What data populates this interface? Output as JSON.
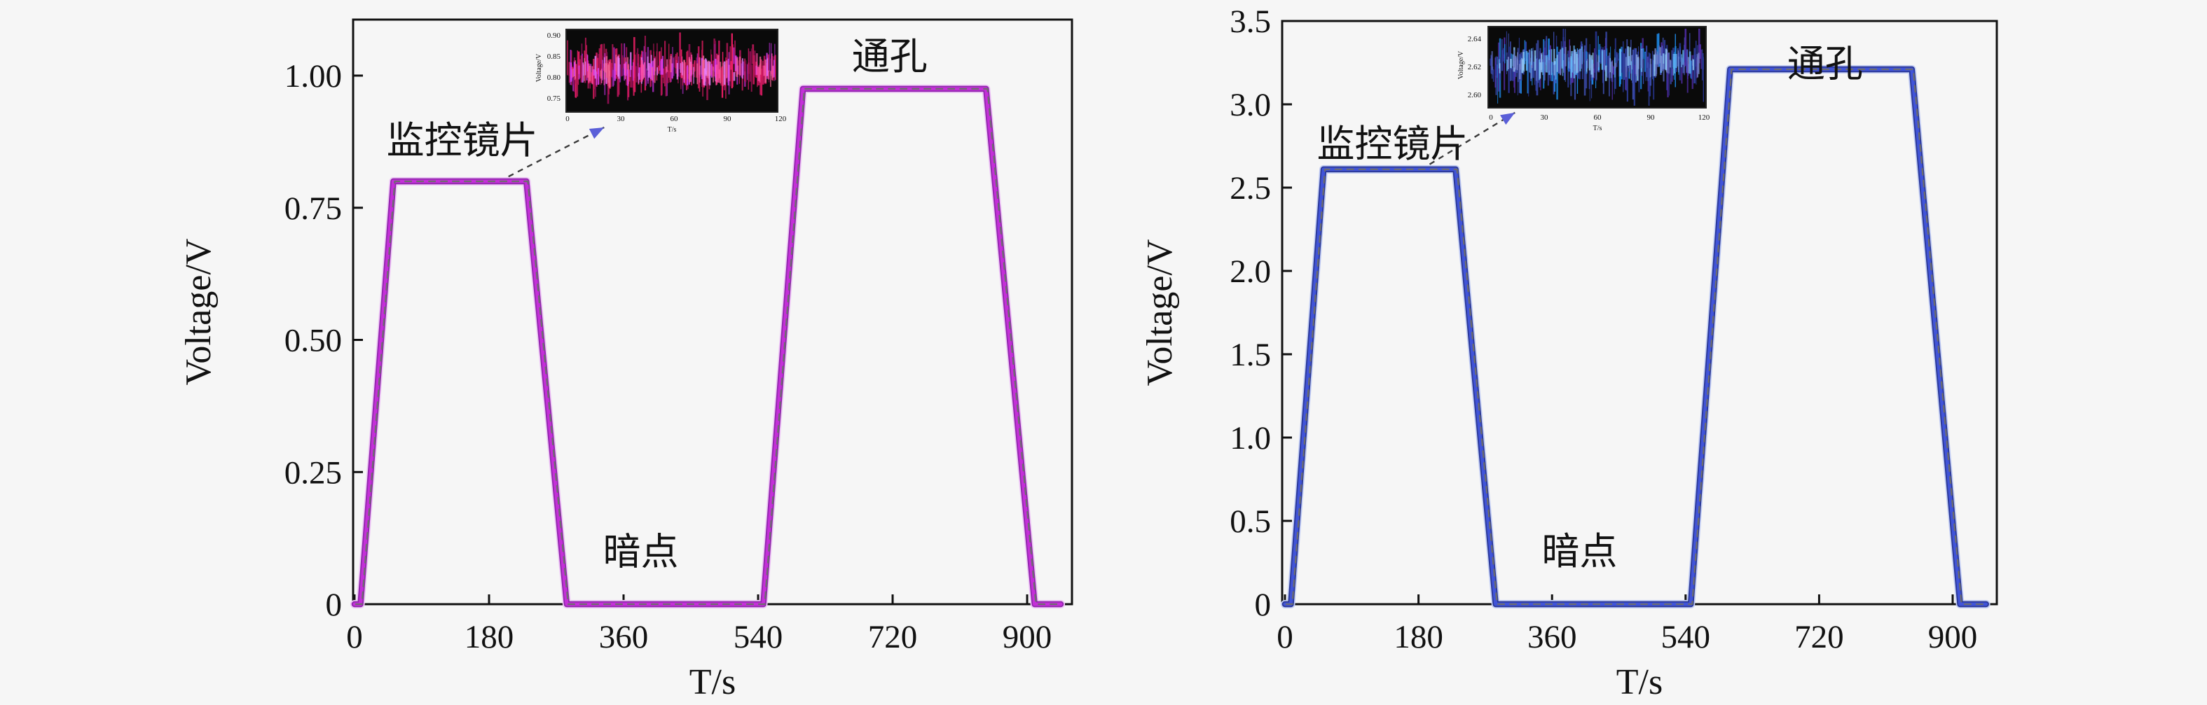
{
  "figure": {
    "background_color": "#f6f6f6",
    "panel_count": 2
  },
  "chart_data": [
    {
      "type": "line",
      "title": "",
      "xlabel": "T/s",
      "ylabel": "Voltage/V",
      "xlim": [
        -8,
        960
      ],
      "ylim": [
        0,
        1.106
      ],
      "grid": false,
      "legend": "none",
      "xticks": [
        0,
        180,
        360,
        540,
        720,
        900
      ],
      "xtick_labels": [
        "0",
        "180",
        "360",
        "540",
        "720",
        "900"
      ],
      "yticks": [
        0,
        0.25,
        0.5,
        0.75,
        1.0
      ],
      "ytick_labels": [
        "0",
        "0.25",
        "0.50",
        "0.75",
        "1.00"
      ],
      "line_color": "#c430d8",
      "line_halo_color": "#eec6f6",
      "line_dark_color": "#8e24aa",
      "series": [
        {
          "name": "voltage-trace",
          "x": [
            0,
            8,
            52,
            230,
            284,
            547,
            600,
            845,
            910,
            945
          ],
          "y": [
            0,
            0,
            0.8,
            0.8,
            0,
            0,
            0.975,
            0.975,
            0,
            0
          ]
        }
      ],
      "plateau_values": {
        "monitor_lens": 0.8,
        "through_hole": 0.975,
        "dark_spot": 0
      },
      "annotations": [
        {
          "id": "lens",
          "text": "监控镜片",
          "x": 144,
          "y": 0.878
        },
        {
          "id": "hole",
          "text": "通孔",
          "x": 716,
          "y": 1.037
        },
        {
          "id": "dark",
          "text": "暗点",
          "x": 383,
          "y": 0.1
        }
      ],
      "arrow": {
        "x1": 206,
        "y1": 0.809,
        "x2": 334,
        "y2": 0.902,
        "color": "#5a5fd8"
      },
      "inset": {
        "bg": "#0a0a0a",
        "noise_color": "#d81b60",
        "ylabel": "Voltage/V",
        "xlabel": "T/s",
        "ytick_labels": [
          "0.90",
          "0.85",
          "0.80",
          "0.75"
        ],
        "xtick_labels": [
          "0",
          "30",
          "60",
          "90",
          "120"
        ]
      }
    },
    {
      "type": "line",
      "title": "",
      "xlabel": "T/s",
      "ylabel": "Voltage/V",
      "xlim": [
        -8,
        960
      ],
      "ylim": [
        0,
        3.5
      ],
      "grid": false,
      "legend": "none",
      "xticks": [
        0,
        180,
        360,
        540,
        720,
        900
      ],
      "xtick_labels": [
        "0",
        "180",
        "360",
        "540",
        "720",
        "900"
      ],
      "yticks": [
        0,
        0.5,
        1.0,
        1.5,
        2.0,
        2.5,
        3.0,
        3.5
      ],
      "ytick_labels": [
        "0",
        "0.5",
        "1.0",
        "1.5",
        "2.0",
        "2.5",
        "3.0",
        "3.5"
      ],
      "line_color": "#4154d8",
      "line_halo_color": "#c2cdf4",
      "line_dark_color": "#283593",
      "series": [
        {
          "name": "voltage-trace",
          "x": [
            0,
            8,
            52,
            230,
            284,
            547,
            600,
            845,
            910,
            945
          ],
          "y": [
            0,
            0,
            2.61,
            2.61,
            0,
            0,
            3.21,
            3.21,
            0,
            0
          ]
        }
      ],
      "plateau_values": {
        "monitor_lens": 2.61,
        "through_hole": 3.21,
        "dark_spot": 0
      },
      "annotations": [
        {
          "id": "lens",
          "text": "监控镜片",
          "x": 145,
          "y": 2.765
        },
        {
          "id": "hole",
          "text": "通孔",
          "x": 728,
          "y": 3.245
        },
        {
          "id": "dark",
          "text": "暗点",
          "x": 397,
          "y": 0.319
        }
      ],
      "arrow": {
        "x1": 195,
        "y1": 2.64,
        "x2": 310,
        "y2": 2.95,
        "color": "#5a5fd8"
      },
      "inset": {
        "bg": "#0a0a0a",
        "noise_color": "#3f51b5",
        "ylabel": "Voltage/V",
        "xlabel": "T/s",
        "ytick_labels": [
          "2.64",
          "2.62",
          "2.60"
        ],
        "xtick_labels": [
          "0",
          "30",
          "60",
          "90",
          "120"
        ]
      }
    }
  ]
}
